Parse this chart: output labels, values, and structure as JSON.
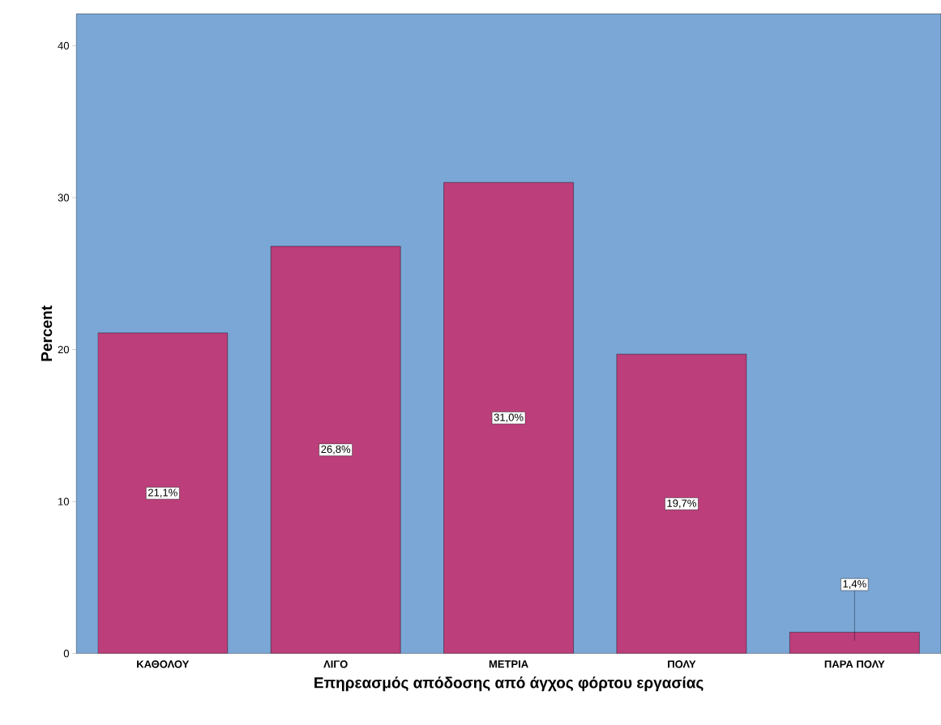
{
  "chart_data": {
    "type": "bar",
    "xlabel": "Επηρεασμός απόδοσης από άγχος φόρτου εργασίας",
    "ylabel": "Percent",
    "categories": [
      "ΚΑΘΟΛΟΥ",
      "ΛΙΓΟ",
      "ΜΕΤΡΙΑ",
      "ΠΟΛΥ",
      "ΠΑΡΑ ΠΟΛΥ"
    ],
    "values": [
      21.1,
      26.8,
      31.0,
      19.7,
      1.4
    ],
    "value_labels": [
      "21,1%",
      "26,8%",
      "31,0%",
      "19,7%",
      "1,4%"
    ],
    "color": "#bc3e7a",
    "ylim": [
      0,
      42.1
    ],
    "yticks": [
      0,
      10,
      20,
      30,
      40
    ]
  }
}
